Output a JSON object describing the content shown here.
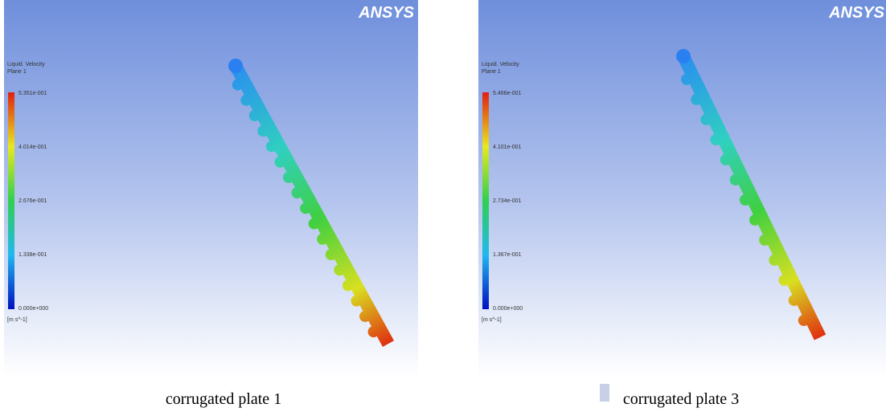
{
  "panels": [
    {
      "logo": "ANSYS",
      "legend_title": "Liquid. Velocity",
      "legend_subtitle": "Plane 1",
      "legend_labels": [
        "5.351e-001",
        "4.014e-001",
        "2.676e-001",
        "1.338e-001",
        "0.000e+000"
      ],
      "unit": "[m s^-1]",
      "caption": "corrugated plate 1"
    },
    {
      "logo": "ANSYS",
      "legend_title": "Liquid. Velocity",
      "legend_subtitle": "Plane 1",
      "legend_labels": [
        "5.466e-001",
        "4.101e-001",
        "2.734e-001",
        "1.367e-001",
        "0.000e+000"
      ],
      "unit": "[m s^-1]",
      "caption": "corrugated plate 3"
    }
  ]
}
